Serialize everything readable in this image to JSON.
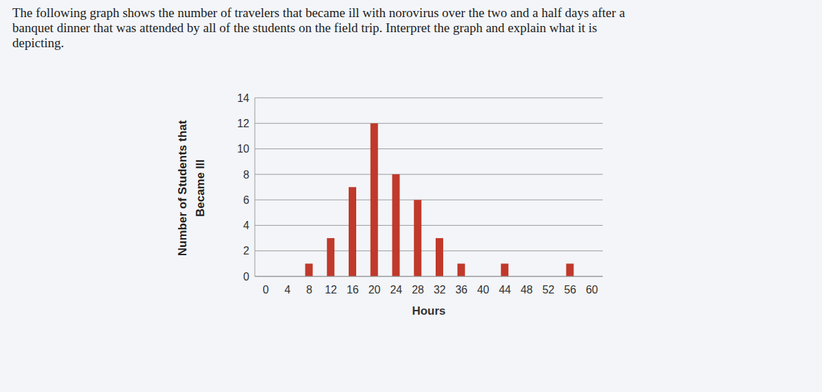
{
  "question": [
    "The following graph shows the number of travelers that became ill with norovirus over the two and a half days after a",
    "banquet dinner that was attended by all of the students on the field trip. Interpret the graph and explain what it is",
    "depicting."
  ],
  "chart_data": {
    "type": "bar",
    "categories": [
      "0",
      "4",
      "8",
      "12",
      "16",
      "20",
      "24",
      "28",
      "32",
      "36",
      "40",
      "44",
      "48",
      "52",
      "56",
      "60"
    ],
    "values": [
      0,
      0,
      1,
      3,
      7,
      12,
      8,
      6,
      3,
      1,
      0,
      1,
      0,
      0,
      1,
      0
    ],
    "color": "#c0392b",
    "xlabel": "Hours",
    "ylabel": [
      "Number of Students that",
      "Became Ill"
    ],
    "ylim": [
      0,
      14
    ],
    "yticks": [
      0,
      2,
      4,
      6,
      8,
      10,
      12,
      14
    ],
    "grid": true
  }
}
